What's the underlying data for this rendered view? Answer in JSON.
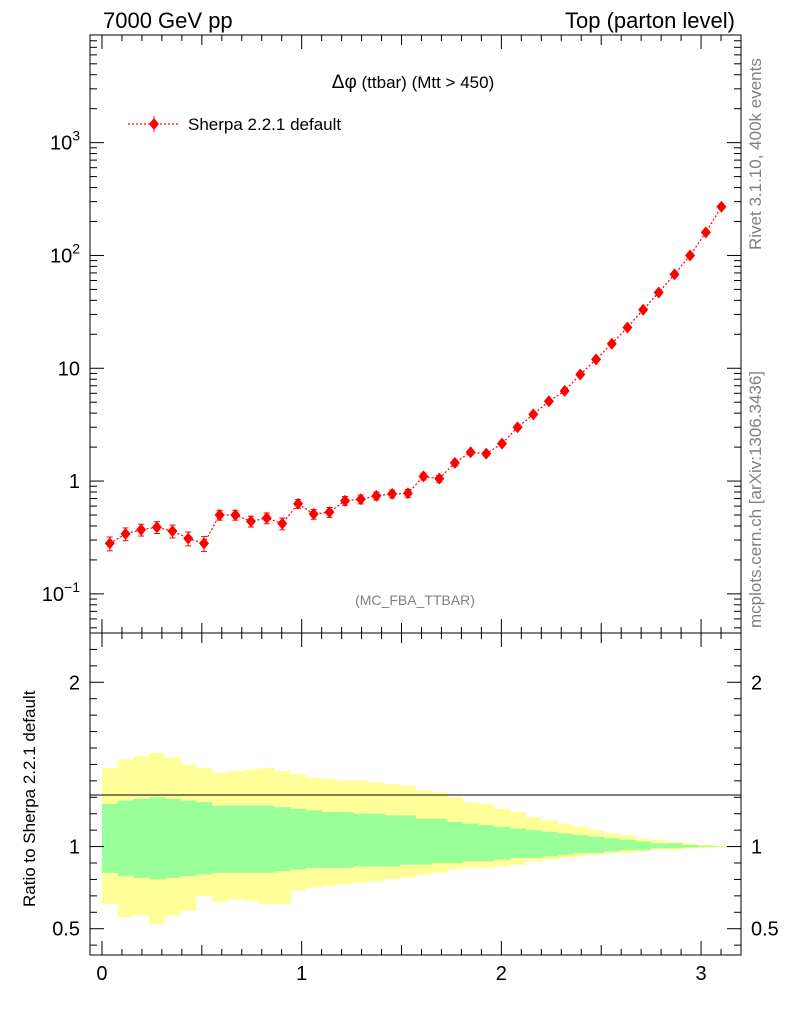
{
  "header": {
    "left": "7000 GeV pp",
    "right": "Top (parton level)"
  },
  "side": {
    "rivet": "Rivet 3.1.10,  400k events",
    "mcplots": "mcplots.cern.ch [arXiv:1306.3436]"
  },
  "chart_data": [
    {
      "type": "line",
      "title": "Δφ (ttbar) (Mtt > 450)",
      "title_main": "Δφ",
      "title_rest": " (ttbar) (Mtt > 450)",
      "watermark": "(MC_FBA_TTBAR)",
      "xlim": [
        -0.06,
        3.2
      ],
      "ylim": [
        0.045,
        9000
      ],
      "y_scale": "log",
      "legend_position": "top-left",
      "series": [
        {
          "name": "Sherpa 2.2.1 default",
          "color": "#ff0000",
          "marker": "diamond",
          "line_style": "dotted",
          "x": [
            0.039,
            0.118,
            0.196,
            0.275,
            0.353,
            0.432,
            0.511,
            0.589,
            0.668,
            0.746,
            0.825,
            0.903,
            0.982,
            1.06,
            1.139,
            1.217,
            1.296,
            1.374,
            1.453,
            1.532,
            1.61,
            1.689,
            1.767,
            1.846,
            1.924,
            2.003,
            2.081,
            2.16,
            2.238,
            2.317,
            2.395,
            2.474,
            2.553,
            2.631,
            2.71,
            2.788,
            2.867,
            2.945,
            3.024,
            3.102
          ],
          "values": [
            0.28,
            0.34,
            0.37,
            0.39,
            0.36,
            0.31,
            0.28,
            0.5,
            0.5,
            0.44,
            0.47,
            0.42,
            0.63,
            0.51,
            0.53,
            0.67,
            0.69,
            0.74,
            0.77,
            0.78,
            1.1,
            1.05,
            1.45,
            1.8,
            1.75,
            2.15,
            3.0,
            3.9,
            5.1,
            6.3,
            8.8,
            12.0,
            16.5,
            23.0,
            33.0,
            47.0,
            68.0,
            100.0,
            160.0,
            270.0
          ],
          "err_rel": [
            0.14,
            0.13,
            0.12,
            0.12,
            0.13,
            0.14,
            0.15,
            0.1,
            0.1,
            0.11,
            0.11,
            0.12,
            0.09,
            0.1,
            0.1,
            0.09,
            0.09,
            0.08,
            0.08,
            0.08,
            0.07,
            0.07,
            0.06,
            0.05,
            0.05,
            0.05,
            0.04,
            0.04,
            0.03,
            0.03,
            0.03,
            0.03,
            0.02,
            0.02,
            0.02,
            0.02,
            0.01,
            0.01,
            0.01,
            0.01
          ]
        }
      ],
      "y_ticks": [
        {
          "value": 0.1,
          "base": "10",
          "exp": "−1"
        },
        {
          "value": 1,
          "base": "1",
          "exp": ""
        },
        {
          "value": 10,
          "base": "10",
          "exp": ""
        },
        {
          "value": 100,
          "base": "10",
          "exp": "2"
        },
        {
          "value": 1000,
          "base": "10",
          "exp": "3"
        }
      ]
    },
    {
      "type": "area",
      "ylabel": "Ratio to Sherpa 2.2.1 default",
      "xlim": [
        -0.06,
        3.2
      ],
      "ylim": [
        0.34,
        2.3
      ],
      "bin_edges": [
        0.0,
        0.079,
        0.157,
        0.236,
        0.314,
        0.393,
        0.471,
        0.55,
        0.628,
        0.707,
        0.785,
        0.864,
        0.942,
        1.021,
        1.1,
        1.178,
        1.257,
        1.335,
        1.414,
        1.492,
        1.571,
        1.649,
        1.728,
        1.806,
        1.885,
        1.963,
        2.042,
        2.12,
        2.199,
        2.278,
        2.356,
        2.435,
        2.513,
        2.592,
        2.67,
        2.749,
        2.827,
        2.906,
        2.985,
        3.063,
        3.142
      ],
      "series": [
        {
          "color": "#ffff99",
          "upper": [
            1.48,
            1.53,
            1.55,
            1.57,
            1.54,
            1.5,
            1.48,
            1.45,
            1.46,
            1.47,
            1.48,
            1.46,
            1.44,
            1.42,
            1.41,
            1.4,
            1.4,
            1.39,
            1.38,
            1.37,
            1.34,
            1.33,
            1.3,
            1.27,
            1.26,
            1.23,
            1.21,
            1.18,
            1.16,
            1.14,
            1.12,
            1.1,
            1.08,
            1.07,
            1.05,
            1.04,
            1.03,
            1.02,
            1.01,
            1.005
          ],
          "lower": [
            0.65,
            0.57,
            0.58,
            0.53,
            0.58,
            0.61,
            0.7,
            0.66,
            0.68,
            0.67,
            0.65,
            0.65,
            0.73,
            0.75,
            0.76,
            0.77,
            0.78,
            0.79,
            0.8,
            0.81,
            0.83,
            0.84,
            0.86,
            0.87,
            0.87,
            0.88,
            0.89,
            0.91,
            0.92,
            0.93,
            0.94,
            0.95,
            0.96,
            0.96,
            0.97,
            0.98,
            0.98,
            0.99,
            0.99,
            0.995
          ]
        },
        {
          "color": "#99ff99",
          "upper": [
            1.26,
            1.28,
            1.29,
            1.3,
            1.29,
            1.28,
            1.27,
            1.25,
            1.25,
            1.25,
            1.25,
            1.24,
            1.23,
            1.22,
            1.21,
            1.21,
            1.2,
            1.2,
            1.19,
            1.19,
            1.17,
            1.17,
            1.15,
            1.14,
            1.13,
            1.12,
            1.11,
            1.1,
            1.09,
            1.08,
            1.07,
            1.06,
            1.05,
            1.04,
            1.03,
            1.02,
            1.02,
            1.01,
            1.005,
            1.002
          ],
          "lower": [
            0.84,
            0.82,
            0.81,
            0.8,
            0.81,
            0.82,
            0.83,
            0.84,
            0.84,
            0.84,
            0.84,
            0.85,
            0.86,
            0.87,
            0.87,
            0.87,
            0.88,
            0.88,
            0.88,
            0.89,
            0.89,
            0.9,
            0.9,
            0.91,
            0.91,
            0.92,
            0.93,
            0.93,
            0.94,
            0.95,
            0.96,
            0.96,
            0.97,
            0.98,
            0.98,
            0.99,
            0.99,
            0.995,
            0.998,
            0.999
          ]
        }
      ],
      "y_ticks": [
        0.5,
        1,
        2
      ],
      "y_tick_labels": [
        "0.5",
        "1",
        "2"
      ],
      "x_ticks": [
        0,
        1,
        2,
        3
      ],
      "x_tick_labels": [
        "0",
        "1",
        "2",
        "3"
      ]
    }
  ]
}
